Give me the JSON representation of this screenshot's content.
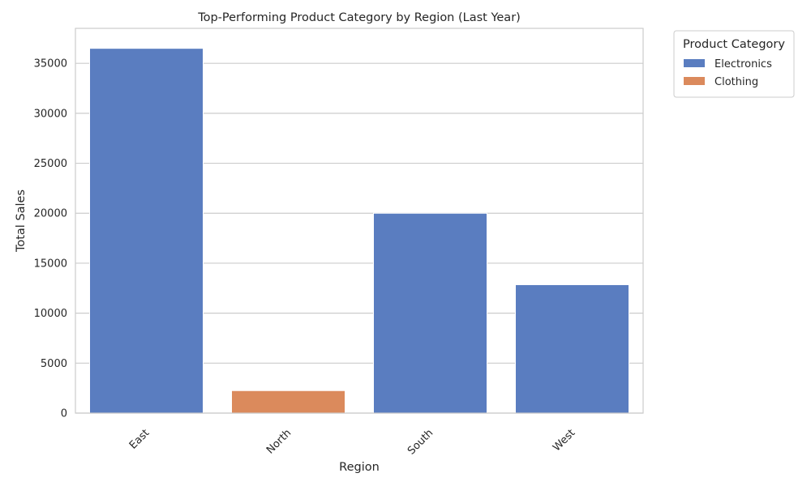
{
  "chart_data": {
    "type": "bar",
    "title": "Top-Performing Product Category by Region (Last Year)",
    "xlabel": "Region",
    "ylabel": "Total Sales",
    "categories": [
      "East",
      "North",
      "South",
      "West"
    ],
    "values": [
      36500,
      2250,
      20000,
      12850
    ],
    "bar_category": [
      "Electronics",
      "Clothing",
      "Electronics",
      "Electronics"
    ],
    "ylim": [
      0,
      38500
    ],
    "yticks": [
      0,
      5000,
      10000,
      15000,
      20000,
      25000,
      30000,
      35000
    ],
    "grid": "horizontal",
    "legend": {
      "title": "Product Category",
      "placement": "outside-top-right",
      "entries": [
        {
          "label": "Electronics",
          "color": "#5a7dc0"
        },
        {
          "label": "Clothing",
          "color": "#db8a5c"
        }
      ]
    }
  }
}
